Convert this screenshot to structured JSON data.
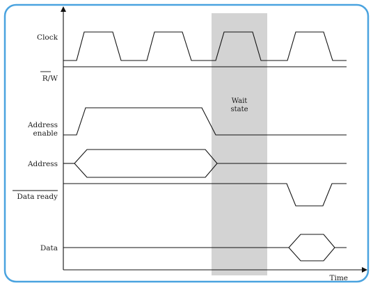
{
  "diagram": {
    "colors": {
      "panel_border": "#4aa3df",
      "panel_fill": "#ffffff",
      "wait_band": "#d3d3d3",
      "line": "#111111"
    },
    "signals": {
      "clock": "Clock",
      "rw": "R/W",
      "address_enable_line1": "Address",
      "address_enable_line2": "enable",
      "address": "Address",
      "data_ready": "Data ready",
      "data": "Data"
    },
    "wait_state": {
      "line1": "Wait",
      "line2": "state"
    },
    "time_axis_label": "Time"
  }
}
